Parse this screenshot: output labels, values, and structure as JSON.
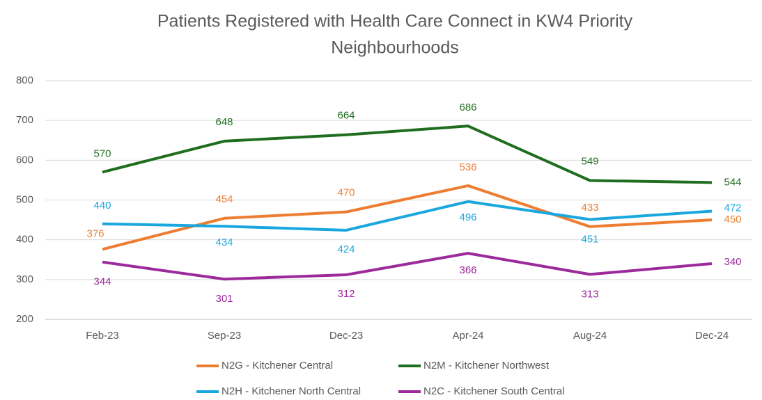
{
  "chart_data": {
    "type": "line",
    "title": [
      "Patients Registered with Health Care Connect in KW4 Priority",
      "Neighbourhoods"
    ],
    "categories": [
      "Feb-23",
      "Sep-23",
      "Dec-23",
      "Apr-24",
      "Aug-24",
      "Dec-24"
    ],
    "series": [
      {
        "name": "N2G - Kitchener Central",
        "color": "#ed7d31",
        "values": [
          376,
          454,
          470,
          536,
          433,
          450
        ]
      },
      {
        "name": "N2M - Kitchener Northwest",
        "color": "#1f6e1f",
        "values": [
          570,
          648,
          664,
          686,
          549,
          544
        ]
      },
      {
        "name": "N2H - Kitchener North Central",
        "color": "#1aa7de",
        "values": [
          440,
          434,
          424,
          496,
          451,
          472
        ]
      },
      {
        "name": "N2C - Kitchener South Central",
        "color": "#9c2a9c",
        "values": [
          344,
          301,
          312,
          366,
          313,
          340
        ]
      }
    ],
    "ylim": [
      200,
      800
    ],
    "yticks": [
      200,
      300,
      400,
      500,
      600,
      700,
      800
    ],
    "grid": true,
    "legend": "bottom"
  }
}
